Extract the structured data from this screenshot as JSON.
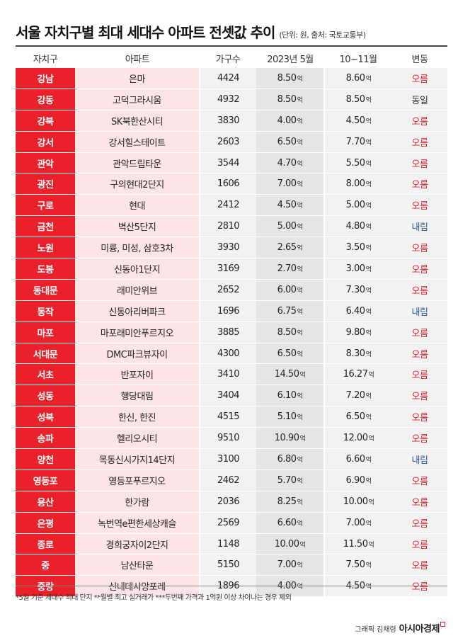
{
  "header": {
    "title": "서울 자치구별 최대 세대수 아파트 전셋값 추이",
    "subtitle": "(단위: 원, 출처: 국토교통부)"
  },
  "columns": [
    "자치구",
    "아파트",
    "가구수",
    "2023년 5월",
    "10~11월",
    "변동"
  ],
  "unit_label": "억",
  "rows": [
    {
      "gu": "강남",
      "apt": "은마",
      "count": "4424",
      "may": "8.50",
      "novs": "8.60",
      "change": "오름",
      "dir": "up"
    },
    {
      "gu": "강동",
      "apt": "고덕그라시움",
      "count": "4932",
      "may": "8.50",
      "novs": "8.50",
      "change": "동일",
      "dir": "same"
    },
    {
      "gu": "강북",
      "apt": "SK북한산시티",
      "count": "3830",
      "may": "4.00",
      "novs": "4.50",
      "change": "오름",
      "dir": "up"
    },
    {
      "gu": "강서",
      "apt": "강서힐스테이트",
      "count": "2603",
      "may": "6.50",
      "novs": "7.70",
      "change": "오름",
      "dir": "up"
    },
    {
      "gu": "관악",
      "apt": "관악드림타운",
      "count": "3544",
      "may": "4.70",
      "novs": "5.50",
      "change": "오름",
      "dir": "up"
    },
    {
      "gu": "광진",
      "apt": "구의현대2단지",
      "count": "1606",
      "may": "7.00",
      "novs": "8.00",
      "change": "오름",
      "dir": "up"
    },
    {
      "gu": "구로",
      "apt": "현대",
      "count": "2412",
      "may": "4.50",
      "novs": "5.00",
      "change": "오름",
      "dir": "up"
    },
    {
      "gu": "금천",
      "apt": "벽산5단지",
      "count": "2810",
      "may": "5.00",
      "novs": "4.80",
      "change": "내림",
      "dir": "down"
    },
    {
      "gu": "노원",
      "apt": "미륭, 미성, 삼호3차",
      "count": "3930",
      "may": "2.65",
      "novs": "3.50",
      "change": "오름",
      "dir": "up"
    },
    {
      "gu": "도봉",
      "apt": "신동아1단지",
      "count": "3169",
      "may": "2.70",
      "novs": "3.00",
      "change": "오름",
      "dir": "up"
    },
    {
      "gu": "동대문",
      "apt": "래미안위브",
      "count": "2652",
      "may": "6.00",
      "novs": "7.30",
      "change": "오름",
      "dir": "up"
    },
    {
      "gu": "동작",
      "apt": "신동아리버파크",
      "count": "1696",
      "may": "6.75",
      "novs": "6.40",
      "change": "내림",
      "dir": "down"
    },
    {
      "gu": "마포",
      "apt": "마포래미안푸르지오",
      "count": "3885",
      "may": "8.50",
      "novs": "9.80",
      "change": "오름",
      "dir": "up"
    },
    {
      "gu": "서대문",
      "apt": "DMC파크뷰자이",
      "count": "4300",
      "may": "6.50",
      "novs": "8.30",
      "change": "오름",
      "dir": "up"
    },
    {
      "gu": "서초",
      "apt": "반포자이",
      "count": "3410",
      "may": "14.50",
      "novs": "16.27",
      "change": "오름",
      "dir": "up"
    },
    {
      "gu": "성동",
      "apt": "행당대림",
      "count": "3404",
      "may": "6.10",
      "novs": "7.20",
      "change": "오름",
      "dir": "up"
    },
    {
      "gu": "성북",
      "apt": "한신, 한진",
      "count": "4515",
      "may": "5.10",
      "novs": "6.50",
      "change": "오름",
      "dir": "up"
    },
    {
      "gu": "송파",
      "apt": "헬리오시티",
      "count": "9510",
      "may": "10.90",
      "novs": "12.00",
      "change": "오름",
      "dir": "up"
    },
    {
      "gu": "양천",
      "apt": "목동신시가지14단지",
      "count": "3100",
      "may": "6.80",
      "novs": "6.60",
      "change": "내림",
      "dir": "down"
    },
    {
      "gu": "영등포",
      "apt": "영등포푸르지오",
      "count": "2462",
      "may": "5.70",
      "novs": "6.90",
      "change": "오름",
      "dir": "up"
    },
    {
      "gu": "용산",
      "apt": "한가람",
      "count": "2036",
      "may": "8.25",
      "novs": "10.00",
      "change": "오름",
      "dir": "up"
    },
    {
      "gu": "은평",
      "apt": "녹번역e편한세상캐슬",
      "count": "2569",
      "may": "6.60",
      "novs": "7.00",
      "change": "오름",
      "dir": "up"
    },
    {
      "gu": "종로",
      "apt": "경희궁자이2단지",
      "count": "1148",
      "may": "10.00",
      "novs": "11.50",
      "change": "오름",
      "dir": "up"
    },
    {
      "gu": "중",
      "apt": "남산타운",
      "count": "5150",
      "may": "7.00",
      "novs": "7.50",
      "change": "오름",
      "dir": "up"
    },
    {
      "gu": "중랑",
      "apt": "신내데시앙포레",
      "count": "1896",
      "may": "4.00",
      "novs": "4.50",
      "change": "오름",
      "dir": "up"
    }
  ],
  "colors": {
    "gu_bg": "#e8212a",
    "apt_bg": "#fde4e6",
    "up": "#e0222c",
    "down": "#2a5a9e"
  },
  "footnote": "*5월 기준 세대수 최대 단지  **월별 최고 실거래가  ***두번째 가격과 1억원 이상 차이나는 경우 제외",
  "credit": {
    "graphic": "그래픽 김채령",
    "brand": "아시아경제"
  }
}
